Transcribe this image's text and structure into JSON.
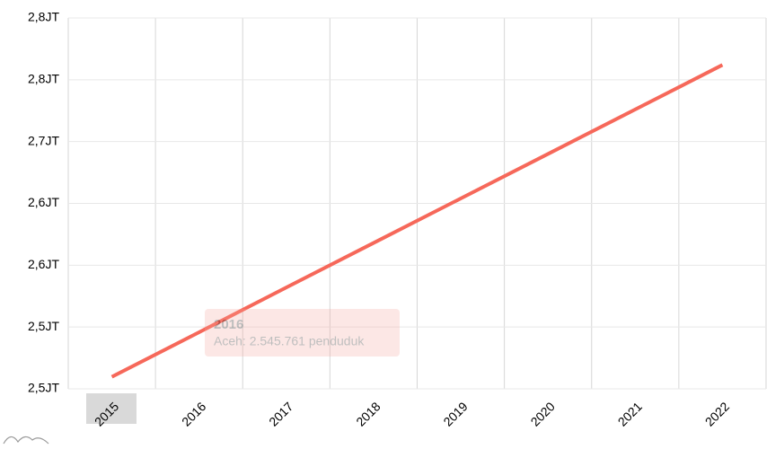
{
  "chart_data": {
    "type": "line",
    "categories": [
      "2015",
      "2016",
      "2017",
      "2018",
      "2019",
      "2020",
      "2021",
      "2022"
    ],
    "series": [
      {
        "name": "Aceh",
        "color": "#f6685a",
        "values": [
          2509700,
          2545761,
          2582000,
          2618000,
          2654000,
          2690000,
          2726000,
          2762000
        ]
      }
    ],
    "ylim": [
      2500000,
      2800000
    ],
    "yticks": [
      {
        "value": 2500000,
        "label": "2,5JT"
      },
      {
        "value": 2550000,
        "label": "2,5JT"
      },
      {
        "value": 2600000,
        "label": "2,6JT"
      },
      {
        "value": 2650000,
        "label": "2,6JT"
      },
      {
        "value": 2700000,
        "label": "2,7JT"
      },
      {
        "value": 2750000,
        "label": "2,8JT"
      },
      {
        "value": 2800000,
        "label": "2,8JT"
      }
    ],
    "grid": true,
    "tooltip": {
      "title": "2016",
      "text": "Aceh: 2.545.761 penduduk"
    }
  }
}
